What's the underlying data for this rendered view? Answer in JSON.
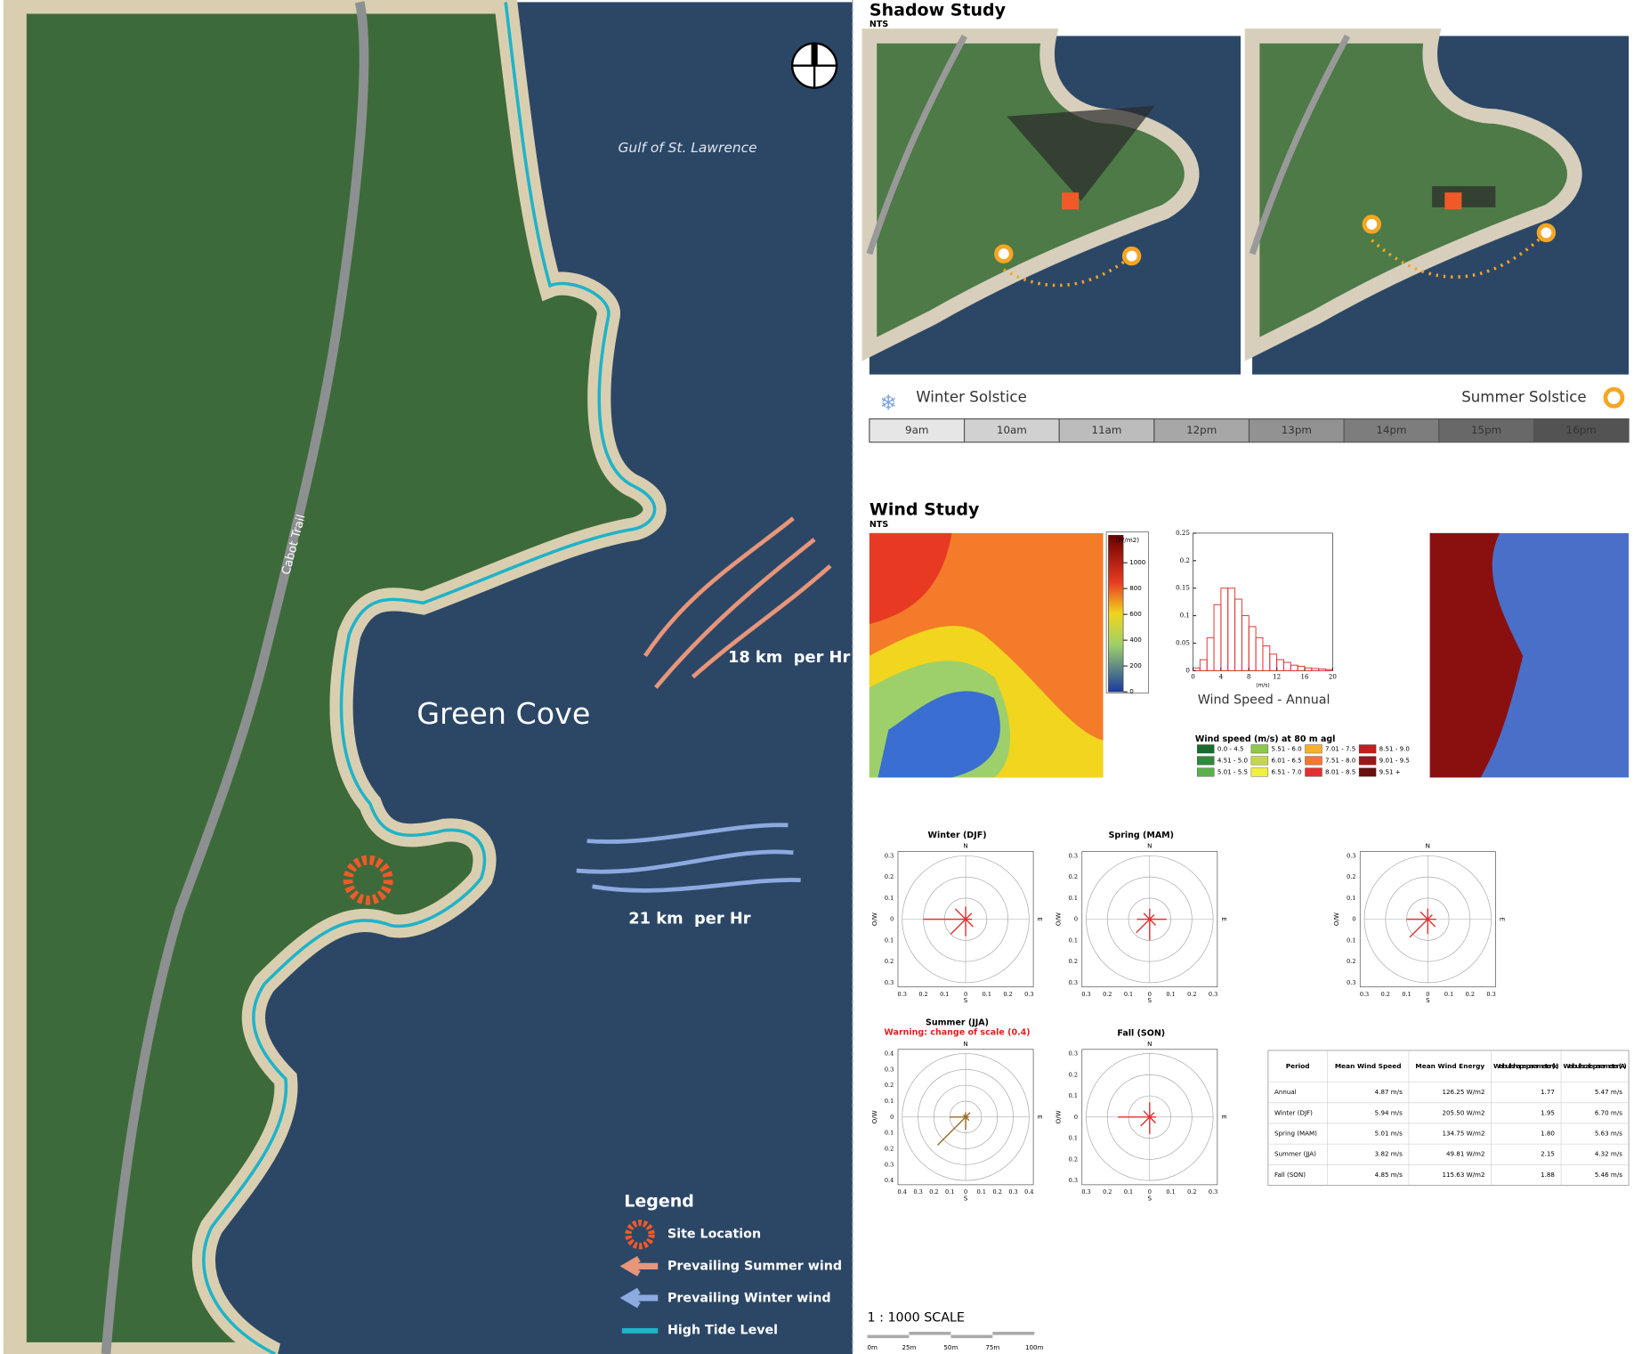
{
  "map": {
    "sea_label": "Gulf of St. Lawrence",
    "road_label": "Cabot Trail",
    "cove_label": "Green Cove",
    "summer_wind": "18 km  per Hr",
    "winter_wind": "21 km  per Hr",
    "legend": {
      "title": "Legend",
      "items": [
        "Site Location",
        "Prevailing Summer wind",
        "Prevailing Winter wind",
        "High Tide Level"
      ]
    }
  },
  "shadow_study": {
    "title": "Shadow Study",
    "subtitle": "NTS",
    "winter_label": "Winter Solstice",
    "summer_label": "Summer Solstice",
    "times": [
      "9am",
      "10am",
      "11am",
      "12pm",
      "13pm",
      "14pm",
      "15pm",
      "16pm"
    ]
  },
  "wind_study": {
    "title": "Wind Study",
    "subtitle": "NTS",
    "energy_scale": {
      "unit": "(W/m2)",
      "ticks": [
        1000,
        800,
        600,
        400,
        200,
        0
      ]
    },
    "histogram": {
      "caption": "Wind Speed - Annual",
      "x_unit": "(m/s)",
      "bins": [
        0,
        1,
        2,
        3,
        4,
        5,
        6,
        7,
        8,
        9,
        10,
        11,
        12,
        13,
        14,
        15,
        16,
        17,
        18,
        19,
        20
      ],
      "values": [
        0.005,
        0.02,
        0.06,
        0.12,
        0.15,
        0.15,
        0.13,
        0.1,
        0.08,
        0.06,
        0.045,
        0.03,
        0.02,
        0.015,
        0.01,
        0.008,
        0.005,
        0.004,
        0.003,
        0.002
      ],
      "xlim": [
        0,
        20
      ],
      "ylim": [
        0,
        0.25
      ],
      "xticks": [
        0,
        4,
        8,
        12,
        16,
        20
      ],
      "yticks": [
        0,
        0.05,
        0.1,
        0.15,
        0.2,
        0.25
      ],
      "color": "#e03030"
    },
    "speed_legend": {
      "title": "Wind speed (m/s) at 80 m agl",
      "classes": [
        {
          "label": "0.0 - 4.5",
          "color": "#1a6b2a"
        },
        {
          "label": "4.51 - 5.0",
          "color": "#2f8a3a"
        },
        {
          "label": "5.01 - 5.5",
          "color": "#5cb04a"
        },
        {
          "label": "5.51 - 6.0",
          "color": "#8cc84a"
        },
        {
          "label": "6.01 - 6.5",
          "color": "#c6d84a"
        },
        {
          "label": "6.51 - 7.0",
          "color": "#f0f040"
        },
        {
          "label": "7.01 - 7.5",
          "color": "#f5b030"
        },
        {
          "label": "7.51 - 8.0",
          "color": "#f07830"
        },
        {
          "label": "8.01 - 8.5",
          "color": "#e03030"
        },
        {
          "label": "8.51 - 9.0",
          "color": "#c02020"
        },
        {
          "label": "9.01 - 9.5",
          "color": "#9a1818"
        },
        {
          "label": "9.51 +",
          "color": "#6a1010"
        }
      ]
    },
    "compass": [
      "N",
      "E",
      "S",
      "O/W"
    ],
    "roses": [
      {
        "title": "Winter (DJF)",
        "lim": 0.3,
        "color": "#e03030",
        "ticks": [
          {
            "value": -0.3,
            "label": "0.3"
          },
          {
            "value": -0.2,
            "label": "0.2"
          },
          {
            "value": -0.1,
            "label": "0.1"
          },
          0,
          0.1,
          0.2,
          0.3
        ],
        "petals": [
          0.06,
          0.04,
          0.03,
          0.05,
          0.08,
          0.1,
          0.2,
          0.07
        ]
      },
      {
        "title": "Spring (MAM)",
        "lim": 0.3,
        "color": "#e03030",
        "ticks": [
          {
            "value": -0.3,
            "label": "0.3"
          },
          {
            "value": -0.2,
            "label": "0.2"
          },
          {
            "value": -0.1,
            "label": "0.1"
          },
          0,
          0.1,
          0.2,
          0.3
        ],
        "petals": [
          0.05,
          0.03,
          0.08,
          0.04,
          0.1,
          0.09,
          0.06,
          0.04
        ]
      },
      {
        "lim": 0.3,
        "color": "#e03030",
        "ticks": [
          {
            "value": -0.3,
            "label": "0.3"
          },
          {
            "value": -0.2,
            "label": "0.2"
          },
          {
            "value": -0.1,
            "label": "0.1"
          },
          0,
          0.1,
          0.2,
          0.3
        ],
        "petals": [
          0.05,
          0.03,
          0.04,
          0.05,
          0.07,
          0.12,
          0.1,
          0.05
        ]
      },
      {
        "title": "Summer (JJA)",
        "warning": "Warning: change of scale (0.4)",
        "lim": 0.4,
        "color": "#9a6a2a",
        "ticks": [
          {
            "value": -0.4,
            "label": "0.4"
          },
          {
            "value": -0.3,
            "label": "0.3"
          },
          {
            "value": -0.2,
            "label": "0.2"
          },
          {
            "value": -0.1,
            "label": "0.1"
          },
          0,
          0.1,
          0.2,
          0.3,
          0.4
        ],
        "petals": [
          0.03,
          0.04,
          0.02,
          0.03,
          0.08,
          0.25,
          0.1,
          0.02
        ]
      },
      {
        "title": "Fall (SON)",
        "lim": 0.3,
        "color": "#e03030",
        "ticks": [
          {
            "value": -0.3,
            "label": "0.3"
          },
          {
            "value": -0.2,
            "label": "0.2"
          },
          {
            "value": -0.1,
            "label": "0.1"
          },
          0,
          0.1,
          0.2,
          0.3
        ],
        "petals": [
          0.07,
          0.03,
          0.03,
          0.04,
          0.08,
          0.06,
          0.15,
          0.04
        ]
      }
    ]
  },
  "table": {
    "header": [
      "Period",
      "Mean Wind Speed",
      "Mean Wind Energy",
      "Weibull shape parameter (k)",
      "Weibull scale parameter (A)"
    ],
    "rows": [
      [
        "Annual",
        "4.87 m/s",
        "126.25 W/m2",
        "1.77",
        "5.47 m/s"
      ],
      [
        "Winter (DJF)",
        "5.94 m/s",
        "205.50 W/m2",
        "1.95",
        "6.70 m/s"
      ],
      [
        "Spring (MAM)",
        "5.01 m/s",
        "134.75 W/m2",
        "1.80",
        "5.63 m/s"
      ],
      [
        "Summer (JJA)",
        "3.82 m/s",
        "49.81 W/m2",
        "2.15",
        "4.32 m/s"
      ],
      [
        "Fall (SON)",
        "4.85 m/s",
        "115.63 W/m2",
        "1.88",
        "5.46 m/s"
      ]
    ]
  },
  "scale": {
    "title": "1 : 1000 SCALE",
    "labels": [
      "0m",
      "25m",
      "50m",
      "75m",
      "100m"
    ]
  }
}
